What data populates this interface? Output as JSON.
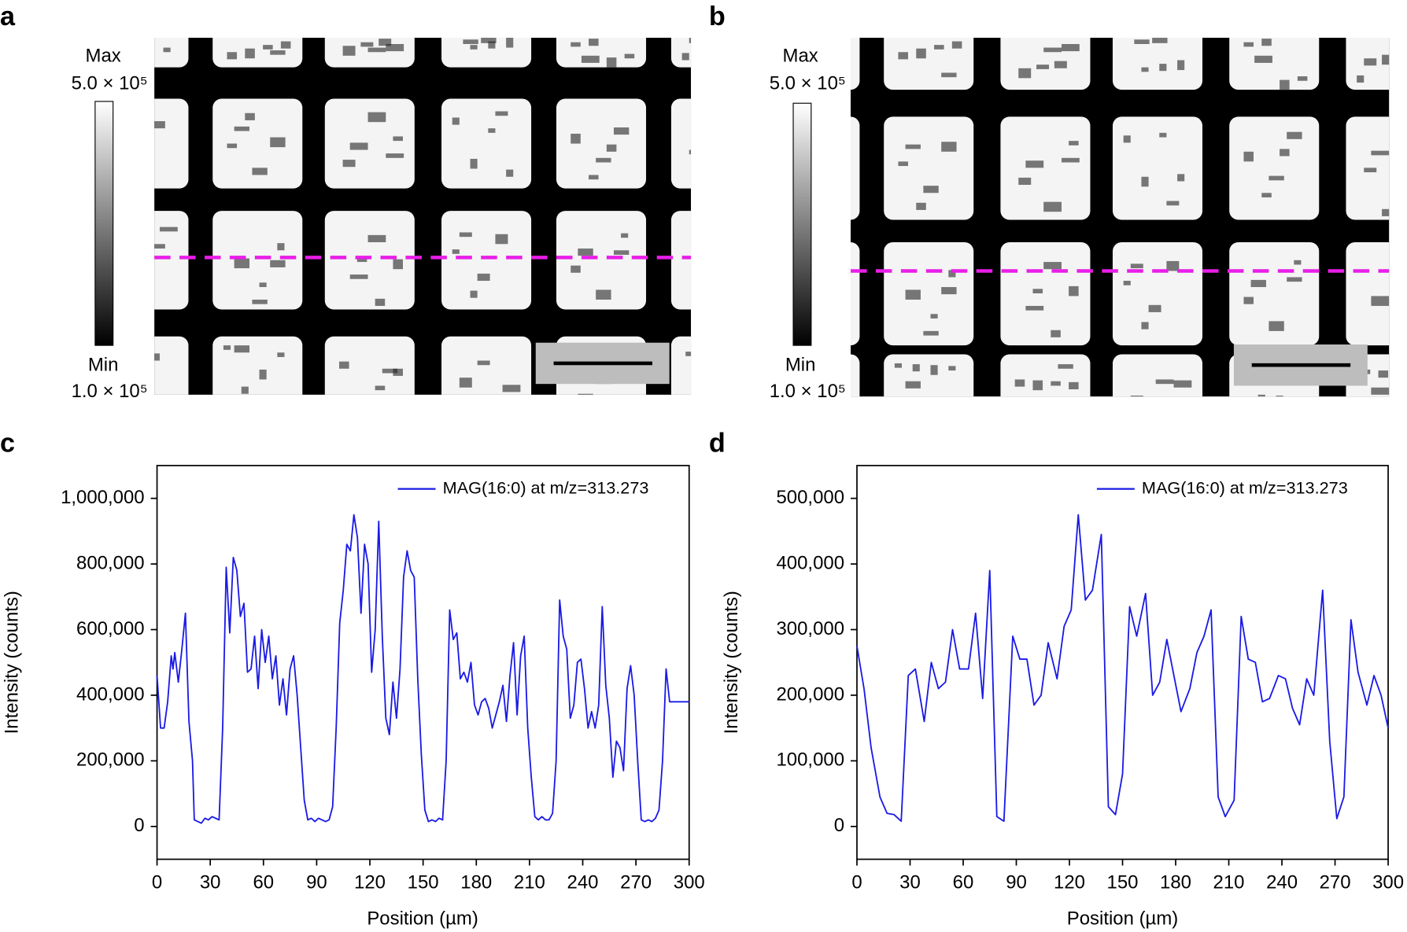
{
  "panels": {
    "a": {
      "label": "a",
      "max_label": "Max",
      "max_value": "5.0 × 10⁵",
      "min_label": "Min",
      "min_value": "1.0 × 10⁵"
    },
    "b": {
      "label": "b",
      "max_label": "Max",
      "max_value": "5.0 × 10⁵",
      "min_label": "Min",
      "min_value": "1.0 × 10⁵"
    },
    "c": {
      "label": "c"
    },
    "d": {
      "label": "d"
    }
  },
  "chart_data": [
    {
      "type": "line",
      "xlabel": "Position (µm)",
      "ylabel": "Intensity (counts)",
      "x": [
        0,
        2,
        4,
        6,
        8,
        9,
        10,
        12,
        14,
        16,
        18,
        20,
        21,
        23,
        25,
        27,
        29,
        31,
        33,
        35,
        37,
        39,
        41,
        43,
        45,
        47,
        49,
        51,
        53,
        55,
        57,
        59,
        61,
        63,
        65,
        67,
        69,
        71,
        73,
        75,
        77,
        79,
        81,
        83,
        85,
        87,
        89,
        91,
        93,
        95,
        97,
        99,
        101,
        103,
        105,
        107,
        109,
        111,
        113,
        115,
        117,
        119,
        121,
        123,
        125,
        127,
        129,
        131,
        133,
        135,
        137,
        139,
        141,
        143,
        145,
        147,
        149,
        151,
        153,
        155,
        157,
        159,
        161,
        163,
        165,
        167,
        169,
        171,
        173,
        175,
        177,
        179,
        181,
        183,
        185,
        187,
        189,
        191,
        193,
        195,
        197,
        199,
        201,
        203,
        205,
        207,
        209,
        211,
        213,
        215,
        217,
        219,
        221,
        223,
        225,
        227,
        229,
        231,
        233,
        235,
        237,
        239,
        241,
        243,
        245,
        247,
        249,
        251,
        253,
        255,
        257,
        259,
        261,
        263,
        265,
        267,
        269,
        271,
        273,
        275,
        277,
        279,
        281,
        283,
        285,
        287,
        289,
        291,
        293,
        300
      ],
      "series": [
        {
          "name": "MAG(16:0) at m/z=313.273",
          "color": "#1a1ae6",
          "values": [
            460000,
            300000,
            300000,
            380000,
            520000,
            480000,
            530000,
            440000,
            540000,
            650000,
            320000,
            200000,
            20000,
            15000,
            10000,
            25000,
            20000,
            30000,
            25000,
            20000,
            300000,
            790000,
            590000,
            820000,
            780000,
            640000,
            680000,
            470000,
            480000,
            580000,
            420000,
            600000,
            500000,
            580000,
            450000,
            520000,
            370000,
            450000,
            340000,
            480000,
            520000,
            400000,
            240000,
            80000,
            20000,
            25000,
            15000,
            25000,
            20000,
            15000,
            20000,
            60000,
            300000,
            620000,
            720000,
            860000,
            840000,
            950000,
            880000,
            650000,
            860000,
            800000,
            470000,
            600000,
            930000,
            580000,
            330000,
            280000,
            440000,
            330000,
            480000,
            760000,
            840000,
            780000,
            760000,
            450000,
            220000,
            50000,
            15000,
            20000,
            15000,
            25000,
            20000,
            200000,
            660000,
            570000,
            590000,
            450000,
            470000,
            440000,
            500000,
            370000,
            340000,
            380000,
            390000,
            360000,
            300000,
            340000,
            380000,
            430000,
            320000,
            460000,
            560000,
            340000,
            520000,
            580000,
            300000,
            150000,
            30000,
            20000,
            30000,
            20000,
            20000,
            40000,
            200000,
            690000,
            580000,
            540000,
            330000,
            370000,
            500000,
            510000,
            420000,
            300000,
            350000,
            300000,
            370000,
            670000,
            430000,
            330000,
            150000,
            260000,
            240000,
            170000,
            420000,
            490000,
            400000,
            200000,
            20000,
            15000,
            20000,
            15000,
            25000,
            50000,
            200000,
            480000,
            380000,
            380000,
            380000,
            380000
          ]
        }
      ],
      "xlim": [
        0,
        300
      ],
      "ylim": [
        -100000,
        1100000
      ],
      "xticks": [
        0,
        30,
        60,
        90,
        120,
        150,
        180,
        210,
        240,
        270,
        300
      ],
      "yticks": [
        0,
        {
          "value": 200000,
          "label": "200,000"
        },
        {
          "value": 400000,
          "label": "400,000"
        },
        {
          "value": 600000,
          "label": "600,000"
        },
        {
          "value": 800000,
          "label": "800,000"
        },
        {
          "value": 1000000,
          "label": "1,000,000"
        }
      ],
      "legend": "upper right"
    },
    {
      "type": "line",
      "xlabel": "Position (µm)",
      "ylabel": "Intensity (counts)",
      "x": [
        0,
        4,
        8,
        13,
        17,
        21,
        25,
        29,
        33,
        38,
        42,
        46,
        50,
        54,
        58,
        63,
        67,
        71,
        75,
        79,
        83,
        88,
        92,
        96,
        100,
        104,
        108,
        113,
        117,
        121,
        125,
        129,
        133,
        138,
        142,
        146,
        150,
        154,
        158,
        163,
        167,
        171,
        175,
        179,
        183,
        188,
        192,
        196,
        200,
        204,
        208,
        213,
        217,
        221,
        225,
        229,
        233,
        238,
        242,
        246,
        250,
        254,
        258,
        263,
        267,
        271,
        275,
        279,
        283,
        288,
        292,
        296,
        300
      ],
      "series": [
        {
          "name": "MAG(16:0) at m/z=313.273",
          "color": "#1a1ae6",
          "values": [
            275000,
            210000,
            120000,
            45000,
            20000,
            18000,
            8000,
            230000,
            240000,
            160000,
            250000,
            210000,
            220000,
            300000,
            240000,
            240000,
            325000,
            195000,
            390000,
            15000,
            8000,
            290000,
            255000,
            255000,
            185000,
            200000,
            280000,
            225000,
            305000,
            330000,
            475000,
            345000,
            360000,
            445000,
            30000,
            18000,
            80000,
            335000,
            290000,
            355000,
            200000,
            220000,
            285000,
            230000,
            175000,
            210000,
            265000,
            290000,
            330000,
            45000,
            15000,
            40000,
            320000,
            255000,
            250000,
            190000,
            195000,
            230000,
            225000,
            180000,
            155000,
            225000,
            200000,
            360000,
            130000,
            12000,
            45000,
            315000,
            235000,
            185000,
            230000,
            200000,
            150000
          ]
        }
      ],
      "xlim": [
        0,
        300
      ],
      "ylim": [
        -50000,
        550000
      ],
      "xticks": [
        0,
        30,
        60,
        90,
        120,
        150,
        180,
        210,
        240,
        270,
        300
      ],
      "yticks": [
        0,
        {
          "value": 100000,
          "label": "100,000"
        },
        {
          "value": 200000,
          "label": "200,000"
        },
        {
          "value": 300000,
          "label": "300,000"
        },
        {
          "value": 400000,
          "label": "400,000"
        },
        {
          "value": 500000,
          "label": "500,000"
        }
      ],
      "legend": "upper right"
    }
  ]
}
